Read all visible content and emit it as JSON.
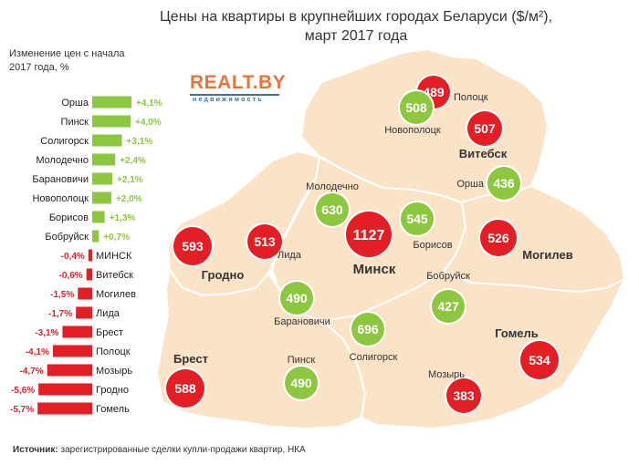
{
  "title_line1": "Цены на квартиры в крупнейших городах Беларуси ($/м²),",
  "title_line2": "март 2017 года",
  "bar_subtitle_line1": "Изменение цен с начала",
  "bar_subtitle_line2": "2017 года, %",
  "logo_text": "REALT.BY",
  "logo_subtext": "недвижимость",
  "source_label": "Источник:",
  "source_text": " зарегистрированные сделки купли-продажи квартир, НКА",
  "colors": {
    "positive": "#8dc63f",
    "negative": "#e31e24",
    "map_fill": "#fbe3c8",
    "map_border": "#ffffff",
    "positive_text": "#8dc63f",
    "negative_text": "#e31e24"
  },
  "chart_data": [
    {
      "type": "bar",
      "orientation": "horizontal",
      "categories": [
        "Орша",
        "Пинск",
        "Солигорск",
        "Молодечно",
        "Барановичи",
        "Новополоцк",
        "Борисов",
        "Бобруйск",
        "МИНСК",
        "Витебск",
        "Могилев",
        "Лида",
        "Брест",
        "Полоцк",
        "Мозырь",
        "Гродно",
        "Гомель"
      ],
      "values": [
        4.1,
        4.0,
        3.1,
        2.4,
        2.1,
        2.0,
        1.3,
        0.7,
        -0.4,
        -0.6,
        -1.5,
        -1.7,
        -3.1,
        -4.1,
        -4.7,
        -5.6,
        -5.7
      ],
      "value_labels": [
        "+4,1%",
        "+4,0%",
        "+3,1%",
        "+2,4%",
        "+2,1%",
        "+2,0%",
        "+1,3%",
        "+0,7%",
        "-0,4%",
        "-0,6%",
        "-1,5%",
        "-1,7%",
        "-3,1%",
        "-4,1%",
        "-4,7%",
        "-5,6%",
        "-5,7%"
      ]
    },
    {
      "type": "map",
      "cities": [
        {
          "name": "Полоцк",
          "value": 489,
          "label": "489",
          "trend": "down",
          "label_bold": false
        },
        {
          "name": "Новополоцк",
          "value": 508,
          "label": "508",
          "trend": "up",
          "label_bold": false
        },
        {
          "name": "Витебск",
          "value": 507,
          "label": "507",
          "trend": "down",
          "label_bold": true
        },
        {
          "name": "Орша",
          "value": 436,
          "label": "436",
          "trend": "up",
          "label_bold": false
        },
        {
          "name": "Молодечно",
          "value": 630,
          "label": "630",
          "trend": "up",
          "label_bold": false
        },
        {
          "name": "Борисов",
          "value": 545,
          "label": "545",
          "trend": "up",
          "label_bold": false
        },
        {
          "name": "Минск",
          "value": 1127,
          "label": "1127",
          "trend": "down",
          "label_bold": true
        },
        {
          "name": "Могилев",
          "value": 526,
          "label": "526",
          "trend": "down",
          "label_bold": true
        },
        {
          "name": "Гродно",
          "value": 593,
          "label": "593",
          "trend": "down",
          "label_bold": true
        },
        {
          "name": "Лида",
          "value": 513,
          "label": "513",
          "trend": "down",
          "label_bold": false
        },
        {
          "name": "Бобруйск",
          "value": 427,
          "label": "427",
          "trend": "up",
          "label_bold": false
        },
        {
          "name": "Барановичи",
          "value": 490,
          "label": "490",
          "trend": "up",
          "label_bold": false
        },
        {
          "name": "Солигорск",
          "value": 696,
          "label": "696",
          "trend": "up",
          "label_bold": false
        },
        {
          "name": "Гомель",
          "value": 534,
          "label": "534",
          "trend": "down",
          "label_bold": true
        },
        {
          "name": "Брест",
          "value": 588,
          "label": "588",
          "trend": "down",
          "label_bold": true
        },
        {
          "name": "Пинск",
          "value": 490,
          "label": "490",
          "trend": "up",
          "label_bold": false
        },
        {
          "name": "Мозырь",
          "value": 383,
          "label": "383",
          "trend": "down",
          "label_bold": false
        }
      ]
    }
  ]
}
